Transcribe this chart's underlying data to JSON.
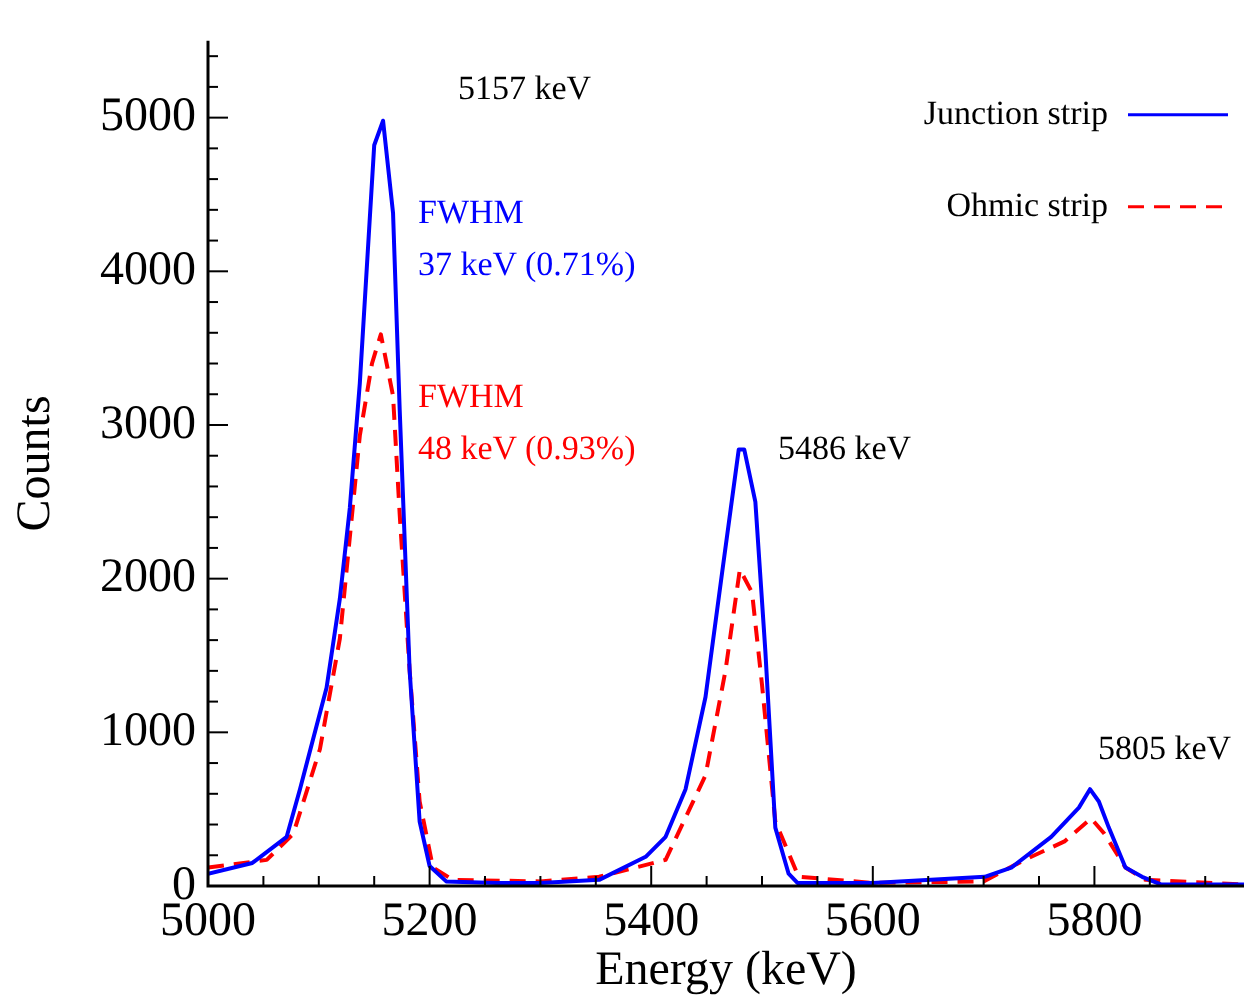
{
  "chart_data": {
    "type": "line",
    "xlabel": "Energy (keV)",
    "ylabel": "Counts",
    "xlim": [
      5000,
      5935
    ],
    "ylim": [
      0,
      5500
    ],
    "xticks": [
      5000,
      {
        "value": 5050,
        "label": null
      },
      {
        "value": 5100,
        "label": null
      },
      {
        "value": 5150,
        "label": null
      },
      5200,
      {
        "value": 5250,
        "label": null
      },
      {
        "value": 5300,
        "label": null
      },
      {
        "value": 5350,
        "label": null
      },
      5400,
      {
        "value": 5450,
        "label": null
      },
      {
        "value": 5500,
        "label": null
      },
      {
        "value": 5550,
        "label": null
      },
      5600,
      {
        "value": 5650,
        "label": null
      },
      {
        "value": 5700,
        "label": null
      },
      {
        "value": 5750,
        "label": null
      },
      5800,
      {
        "value": 5850,
        "label": null
      },
      {
        "value": 5900,
        "label": null
      }
    ],
    "yticks": [
      0,
      {
        "value": 200,
        "label": null
      },
      {
        "value": 400,
        "label": null
      },
      {
        "value": 600,
        "label": null
      },
      {
        "value": 800,
        "label": null
      },
      1000,
      {
        "value": 1200,
        "label": null
      },
      {
        "value": 1400,
        "label": null
      },
      {
        "value": 1600,
        "label": null
      },
      {
        "value": 1800,
        "label": null
      },
      2000,
      {
        "value": 2200,
        "label": null
      },
      {
        "value": 2400,
        "label": null
      },
      {
        "value": 2600,
        "label": null
      },
      {
        "value": 2800,
        "label": null
      },
      3000,
      {
        "value": 3200,
        "label": null
      },
      {
        "value": 3400,
        "label": null
      },
      {
        "value": 3600,
        "label": null
      },
      {
        "value": 3800,
        "label": null
      },
      4000,
      {
        "value": 4200,
        "label": null
      },
      {
        "value": 4400,
        "label": null
      },
      {
        "value": 4600,
        "label": null
      },
      {
        "value": 4800,
        "label": null
      },
      5000,
      {
        "value": 5200,
        "label": null
      },
      {
        "value": 5400,
        "label": null
      }
    ],
    "grid": false,
    "legend": "top right",
    "marker": "none",
    "series": [
      {
        "name": "Junction strip",
        "color": "#0000ff",
        "line_style": "solid",
        "x": [
          5000,
          5040,
          5071,
          5083,
          5107,
          5119,
          5128,
          5137,
          5150,
          5158,
          5167,
          5173,
          5182,
          5191,
          5200,
          5215,
          5260,
          5300,
          5353,
          5395,
          5413,
          5431,
          5449,
          5464,
          5479,
          5484,
          5494,
          5503,
          5512,
          5524,
          5532,
          5600,
          5701,
          5725,
          5761,
          5786,
          5796,
          5804,
          5813,
          5828,
          5843,
          5860,
          5935
        ],
        "values": [
          80,
          150,
          320,
          630,
          1290,
          1870,
          2460,
          3270,
          4820,
          4980,
          4380,
          3100,
          1400,
          420,
          130,
          30,
          20,
          20,
          40,
          190,
          320,
          630,
          1230,
          2040,
          2840,
          2840,
          2500,
          1530,
          380,
          80,
          20,
          20,
          60,
          120,
          320,
          510,
          630,
          550,
          380,
          120,
          60,
          10,
          10
        ]
      },
      {
        "name": "Ohmic strip",
        "color": "#ff0000",
        "line_style": "dashed",
        "x": [
          5000,
          5053,
          5077,
          5101,
          5119,
          5137,
          5148,
          5156,
          5167,
          5173,
          5182,
          5191,
          5203,
          5221,
          5300,
          5353,
          5413,
          5449,
          5467,
          5480,
          5491,
          5500,
          5512,
          5533,
          5600,
          5700,
          5737,
          5773,
          5797,
          5809,
          5828,
          5846,
          5935
        ],
        "values": [
          120,
          170,
          340,
          890,
          1610,
          2930,
          3400,
          3590,
          3190,
          2420,
          1400,
          550,
          120,
          40,
          30,
          60,
          170,
          720,
          1400,
          2060,
          1910,
          1310,
          420,
          60,
          20,
          30,
          170,
          290,
          440,
          340,
          120,
          40,
          10
        ]
      }
    ],
    "annotations": [
      "5157 keV",
      "FWHM\n37 keV (0.71%)",
      "FWHM\n48 keV (0.93%)",
      "5486 keV",
      "5805 keV"
    ]
  }
}
